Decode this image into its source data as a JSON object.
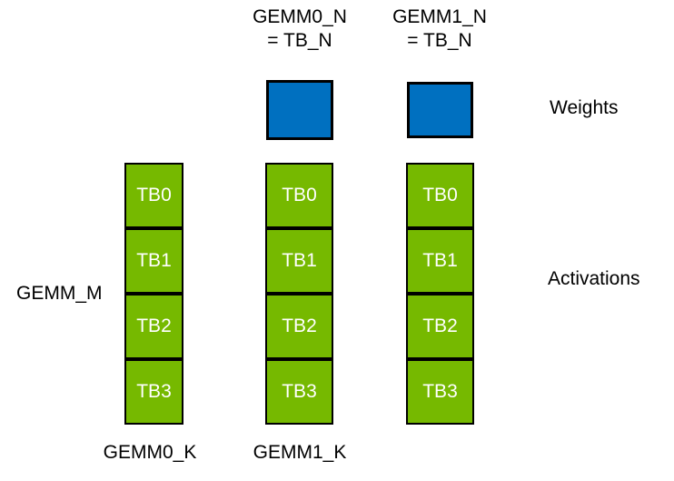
{
  "diagram": {
    "title_semantic": "GEMM thread-block tiling diagram",
    "colors": {
      "activation_green": "#76B900",
      "weight_blue": "#0070C0",
      "border_black": "#000000",
      "tb_text": "#FFFFFF",
      "label_text": "#000000"
    },
    "top_labels": [
      {
        "line1": "GEMM0_N",
        "line2": "= TB_N"
      },
      {
        "line1": "GEMM1_N",
        "line2": "= TB_N"
      }
    ],
    "side_labels": {
      "weights": "Weights",
      "activations": "Activations",
      "gemm_m": "GEMM_M"
    },
    "bottom_labels": [
      "GEMM0_K",
      "GEMM1_K"
    ],
    "columns": [
      {
        "cells": [
          "TB0",
          "TB1",
          "TB2",
          "TB3"
        ]
      },
      {
        "cells": [
          "TB0",
          "TB1",
          "TB2",
          "TB3"
        ]
      },
      {
        "cells": [
          "TB0",
          "TB1",
          "TB2",
          "TB3"
        ]
      }
    ]
  }
}
